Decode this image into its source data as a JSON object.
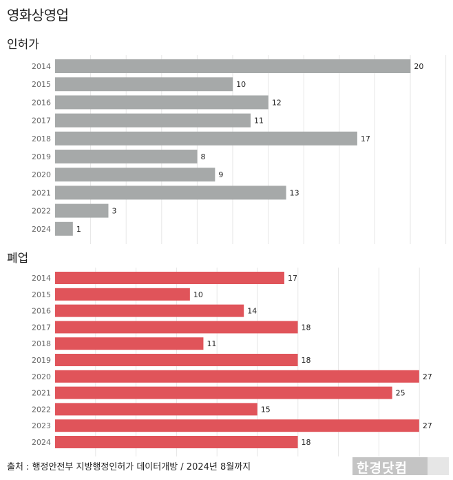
{
  "title": "영화상영업",
  "source": "출처 : 행정안전부 지방행정인허가 데이터개방 / 2024년 8월까지",
  "logo_text": "한경닷컴",
  "colors": {
    "permit": "#a6a9a9",
    "closure": "#e0545a",
    "grid": "#e6e6e6"
  },
  "chart_data": [
    {
      "type": "bar",
      "orientation": "horizontal",
      "title": "인허가",
      "categories": [
        "2014",
        "2015",
        "2016",
        "2017",
        "2018",
        "2019",
        "2020",
        "2021",
        "2022",
        "2024"
      ],
      "values": [
        20,
        10,
        12,
        11,
        17,
        8,
        9,
        13,
        3,
        1
      ],
      "xlim": [
        0,
        22
      ],
      "grid": true
    },
    {
      "type": "bar",
      "orientation": "horizontal",
      "title": "폐업",
      "categories": [
        "2014",
        "2015",
        "2016",
        "2017",
        "2018",
        "2019",
        "2020",
        "2021",
        "2022",
        "2023",
        "2024"
      ],
      "values": [
        17,
        10,
        14,
        18,
        11,
        18,
        27,
        25,
        15,
        27,
        18
      ],
      "xlim": [
        0,
        29
      ],
      "grid": true
    }
  ]
}
